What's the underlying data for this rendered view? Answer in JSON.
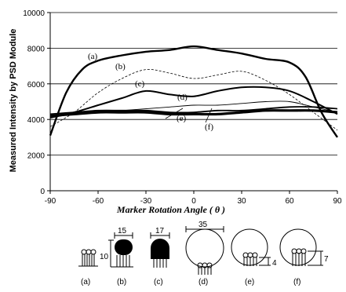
{
  "chart_data": {
    "type": "line",
    "title": "",
    "xlabel": "Marker Rotation Angle ( θ )",
    "ylabel": "Measured Intensity by PSD Module",
    "xlim": [
      -90,
      90
    ],
    "ylim": [
      0,
      10000
    ],
    "xticks": [
      -90,
      -60,
      -30,
      0,
      30,
      60,
      90
    ],
    "yticks": [
      0,
      2000,
      4000,
      6000,
      8000,
      10000
    ],
    "grid": "horizontal",
    "series": [
      {
        "name": "(a)",
        "x": [
          -90,
          -80,
          -70,
          -60,
          -45,
          -30,
          -15,
          0,
          15,
          30,
          45,
          60,
          70,
          80,
          90
        ],
        "y": [
          3100,
          5500,
          6800,
          7300,
          7600,
          7800,
          7900,
          8100,
          7900,
          7700,
          7400,
          7200,
          6400,
          4400,
          3000
        ]
      },
      {
        "name": "(b)",
        "x": [
          -90,
          -75,
          -60,
          -45,
          -30,
          -15,
          0,
          15,
          30,
          45,
          60,
          75,
          90
        ],
        "y": [
          3600,
          4400,
          5500,
          6300,
          6800,
          6600,
          6300,
          6500,
          6700,
          6200,
          5400,
          4400,
          3400
        ]
      },
      {
        "name": "(c)",
        "x": [
          -90,
          -75,
          -60,
          -45,
          -30,
          -15,
          0,
          15,
          30,
          45,
          60,
          75,
          90
        ],
        "y": [
          4100,
          4400,
          4800,
          5200,
          5600,
          5400,
          5300,
          5600,
          5800,
          5800,
          5600,
          5000,
          4300
        ]
      },
      {
        "name": "(d)",
        "x": [
          -90,
          -75,
          -60,
          -45,
          -30,
          -15,
          0,
          15,
          30,
          45,
          60,
          75,
          90
        ],
        "y": [
          4100,
          4300,
          4400,
          4500,
          4600,
          4700,
          4800,
          4800,
          4900,
          5000,
          5000,
          4700,
          4400
        ]
      },
      {
        "name": "(e)",
        "x": [
          -90,
          -75,
          -60,
          -45,
          -30,
          -15,
          0,
          15,
          30,
          45,
          60,
          75,
          90
        ],
        "y": [
          4200,
          4300,
          4400,
          4400,
          4400,
          4300,
          4300,
          4300,
          4400,
          4500,
          4500,
          4500,
          4400
        ]
      },
      {
        "name": "(f)",
        "x": [
          -90,
          -75,
          -60,
          -45,
          -30,
          -15,
          0,
          15,
          30,
          45,
          60,
          75,
          90
        ],
        "y": [
          4300,
          4400,
          4500,
          4500,
          4500,
          4400,
          4400,
          4500,
          4500,
          4600,
          4700,
          4700,
          4600
        ]
      }
    ]
  },
  "marker_diagrams": [
    {
      "id": "a",
      "caption": "(a)",
      "dimension": "10"
    },
    {
      "id": "b",
      "caption": "(b)",
      "dimension": "15"
    },
    {
      "id": "c",
      "caption": "(c)",
      "dimension": "17"
    },
    {
      "id": "d",
      "caption": "(d)",
      "dimension": "35"
    },
    {
      "id": "e",
      "caption": "(e)",
      "dimension": "4"
    },
    {
      "id": "f",
      "caption": "(f)",
      "dimension": "7"
    }
  ]
}
